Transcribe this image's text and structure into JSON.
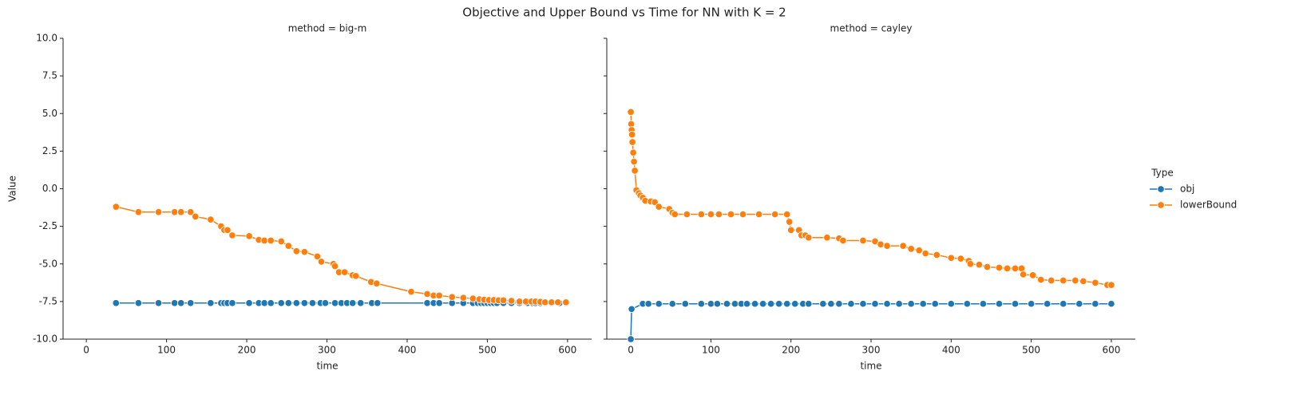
{
  "title": "Objective and Upper Bound vs Time for NN with K = 2",
  "legend_title": "Type",
  "chart_data": [
    {
      "type": "line",
      "title": "method = big-m",
      "xlabel": "time",
      "ylabel": "Value",
      "xlim": [
        -29,
        630
      ],
      "xticks": [
        0,
        100,
        200,
        300,
        400,
        500,
        600
      ],
      "ylim": [
        -10,
        10
      ],
      "yticks": [
        {
          "value": -10,
          "label": "-10.0"
        },
        -7.5,
        {
          "value": -5,
          "label": "-5.0"
        },
        -2.5,
        {
          "value": 0,
          "label": "0.0"
        },
        2.5,
        {
          "value": 5,
          "label": "5.0"
        },
        7.5,
        {
          "value": 10,
          "label": "10.0"
        }
      ],
      "series": [
        {
          "name": "obj",
          "color": "#1f77b4",
          "x": [
            37,
            65,
            90,
            110,
            118,
            130,
            155,
            168,
            172,
            176,
            182,
            203,
            215,
            222,
            230,
            243,
            252,
            262,
            272,
            282,
            292,
            298,
            310,
            318,
            325,
            332,
            342,
            356,
            363,
            425,
            433,
            440,
            456,
            470,
            482,
            488,
            492,
            496,
            500,
            504,
            508,
            512,
            520,
            530,
            540,
            550,
            556,
            560,
            566,
            572,
            580,
            590,
            598
          ],
          "values": [
            -7.6,
            -7.6,
            -7.6,
            -7.6,
            -7.6,
            -7.6,
            -7.6,
            -7.6,
            -7.6,
            -7.6,
            -7.6,
            -7.6,
            -7.6,
            -7.6,
            -7.6,
            -7.6,
            -7.6,
            -7.6,
            -7.6,
            -7.6,
            -7.6,
            -7.6,
            -7.6,
            -7.6,
            -7.6,
            -7.6,
            -7.6,
            -7.6,
            -7.6,
            -7.6,
            -7.6,
            -7.6,
            -7.6,
            -7.6,
            -7.6,
            -7.6,
            -7.6,
            -7.6,
            -7.6,
            -7.6,
            -7.6,
            -7.6,
            -7.6,
            -7.6,
            -7.6,
            -7.6,
            -7.6,
            -7.6,
            -7.6,
            -7.6,
            -7.6,
            -7.6,
            -7.6
          ]
        },
        {
          "name": "lowerBound",
          "color": "#ff7f0e",
          "x": [
            37,
            65,
            90,
            110,
            118,
            130,
            136,
            155,
            168,
            172,
            176,
            182,
            203,
            215,
            222,
            230,
            243,
            252,
            262,
            272,
            288,
            293,
            308,
            310,
            315,
            322,
            332,
            336,
            355,
            362,
            405,
            425,
            433,
            440,
            456,
            470,
            482,
            490,
            496,
            502,
            508,
            514,
            520,
            530,
            540,
            548,
            555,
            560,
            566,
            572,
            580,
            588,
            598
          ],
          "values": [
            -1.2,
            -1.55,
            -1.55,
            -1.55,
            -1.55,
            -1.55,
            -1.85,
            -2.05,
            -2.5,
            -2.75,
            -2.75,
            -3.1,
            -3.15,
            -3.4,
            -3.45,
            -3.45,
            -3.5,
            -3.8,
            -4.15,
            -4.2,
            -4.5,
            -4.85,
            -5.0,
            -5.15,
            -5.55,
            -5.55,
            -5.75,
            -5.8,
            -6.2,
            -6.3,
            -6.85,
            -7.0,
            -7.1,
            -7.1,
            -7.2,
            -7.25,
            -7.3,
            -7.35,
            -7.38,
            -7.4,
            -7.4,
            -7.42,
            -7.42,
            -7.45,
            -7.5,
            -7.5,
            -7.5,
            -7.5,
            -7.52,
            -7.55,
            -7.55,
            -7.55,
            -7.55
          ]
        }
      ]
    },
    {
      "type": "line",
      "title": "method = cayley",
      "xlabel": "time",
      "xlim": [
        -30,
        630
      ],
      "xticks": [
        0,
        100,
        200,
        300,
        400,
        500,
        600
      ],
      "ylim": [
        -10,
        10
      ],
      "yticks": [
        -10,
        -7.5,
        -5,
        -2.5,
        0,
        2.5,
        5,
        7.5,
        10
      ],
      "series": [
        {
          "name": "obj",
          "color": "#1f77b4",
          "x": [
            0,
            1,
            15,
            22,
            35,
            52,
            68,
            88,
            100,
            108,
            120,
            130,
            138,
            145,
            155,
            165,
            175,
            185,
            195,
            205,
            215,
            222,
            240,
            250,
            260,
            275,
            290,
            305,
            320,
            335,
            350,
            365,
            380,
            400,
            420,
            440,
            460,
            480,
            500,
            520,
            540,
            560,
            580,
            600
          ],
          "values": [
            -10,
            -8,
            -7.65,
            -7.65,
            -7.65,
            -7.65,
            -7.65,
            -7.65,
            -7.65,
            -7.65,
            -7.65,
            -7.65,
            -7.65,
            -7.65,
            -7.65,
            -7.65,
            -7.65,
            -7.65,
            -7.65,
            -7.65,
            -7.65,
            -7.65,
            -7.65,
            -7.65,
            -7.65,
            -7.65,
            -7.65,
            -7.65,
            -7.65,
            -7.65,
            -7.65,
            -7.65,
            -7.65,
            -7.65,
            -7.65,
            -7.65,
            -7.65,
            -7.65,
            -7.65,
            -7.65,
            -7.65,
            -7.65,
            -7.65,
            -7.65
          ]
        },
        {
          "name": "lowerBound",
          "color": "#ff7f0e",
          "x": [
            0,
            0.5,
            1,
            1.5,
            2,
            3,
            4,
            5,
            7,
            10,
            12,
            15,
            18,
            25,
            30,
            35,
            48,
            52,
            55,
            70,
            88,
            100,
            110,
            125,
            140,
            160,
            180,
            195,
            198,
            200,
            210,
            213,
            218,
            222,
            245,
            260,
            265,
            290,
            305,
            312,
            320,
            340,
            350,
            360,
            368,
            382,
            400,
            412,
            422,
            424,
            435,
            445,
            460,
            470,
            480,
            488,
            490,
            502,
            512,
            525,
            540,
            555,
            565,
            580,
            595,
            600
          ],
          "values": [
            5.1,
            4.3,
            3.9,
            3.6,
            3.1,
            2.4,
            1.8,
            1.2,
            -0.1,
            -0.3,
            -0.45,
            -0.6,
            -0.8,
            -0.85,
            -0.9,
            -1.2,
            -1.35,
            -1.6,
            -1.7,
            -1.7,
            -1.7,
            -1.7,
            -1.7,
            -1.7,
            -1.7,
            -1.7,
            -1.7,
            -1.7,
            -2.2,
            -2.75,
            -2.75,
            -3.1,
            -3.1,
            -3.25,
            -3.25,
            -3.3,
            -3.45,
            -3.45,
            -3.5,
            -3.7,
            -3.8,
            -3.8,
            -4.0,
            -4.1,
            -4.3,
            -4.4,
            -4.6,
            -4.65,
            -4.8,
            -5.0,
            -5.05,
            -5.2,
            -5.25,
            -5.3,
            -5.3,
            -5.3,
            -5.7,
            -5.75,
            -6.05,
            -6.1,
            -6.1,
            -6.1,
            -6.15,
            -6.25,
            -6.4,
            -6.4
          ]
        }
      ]
    }
  ]
}
